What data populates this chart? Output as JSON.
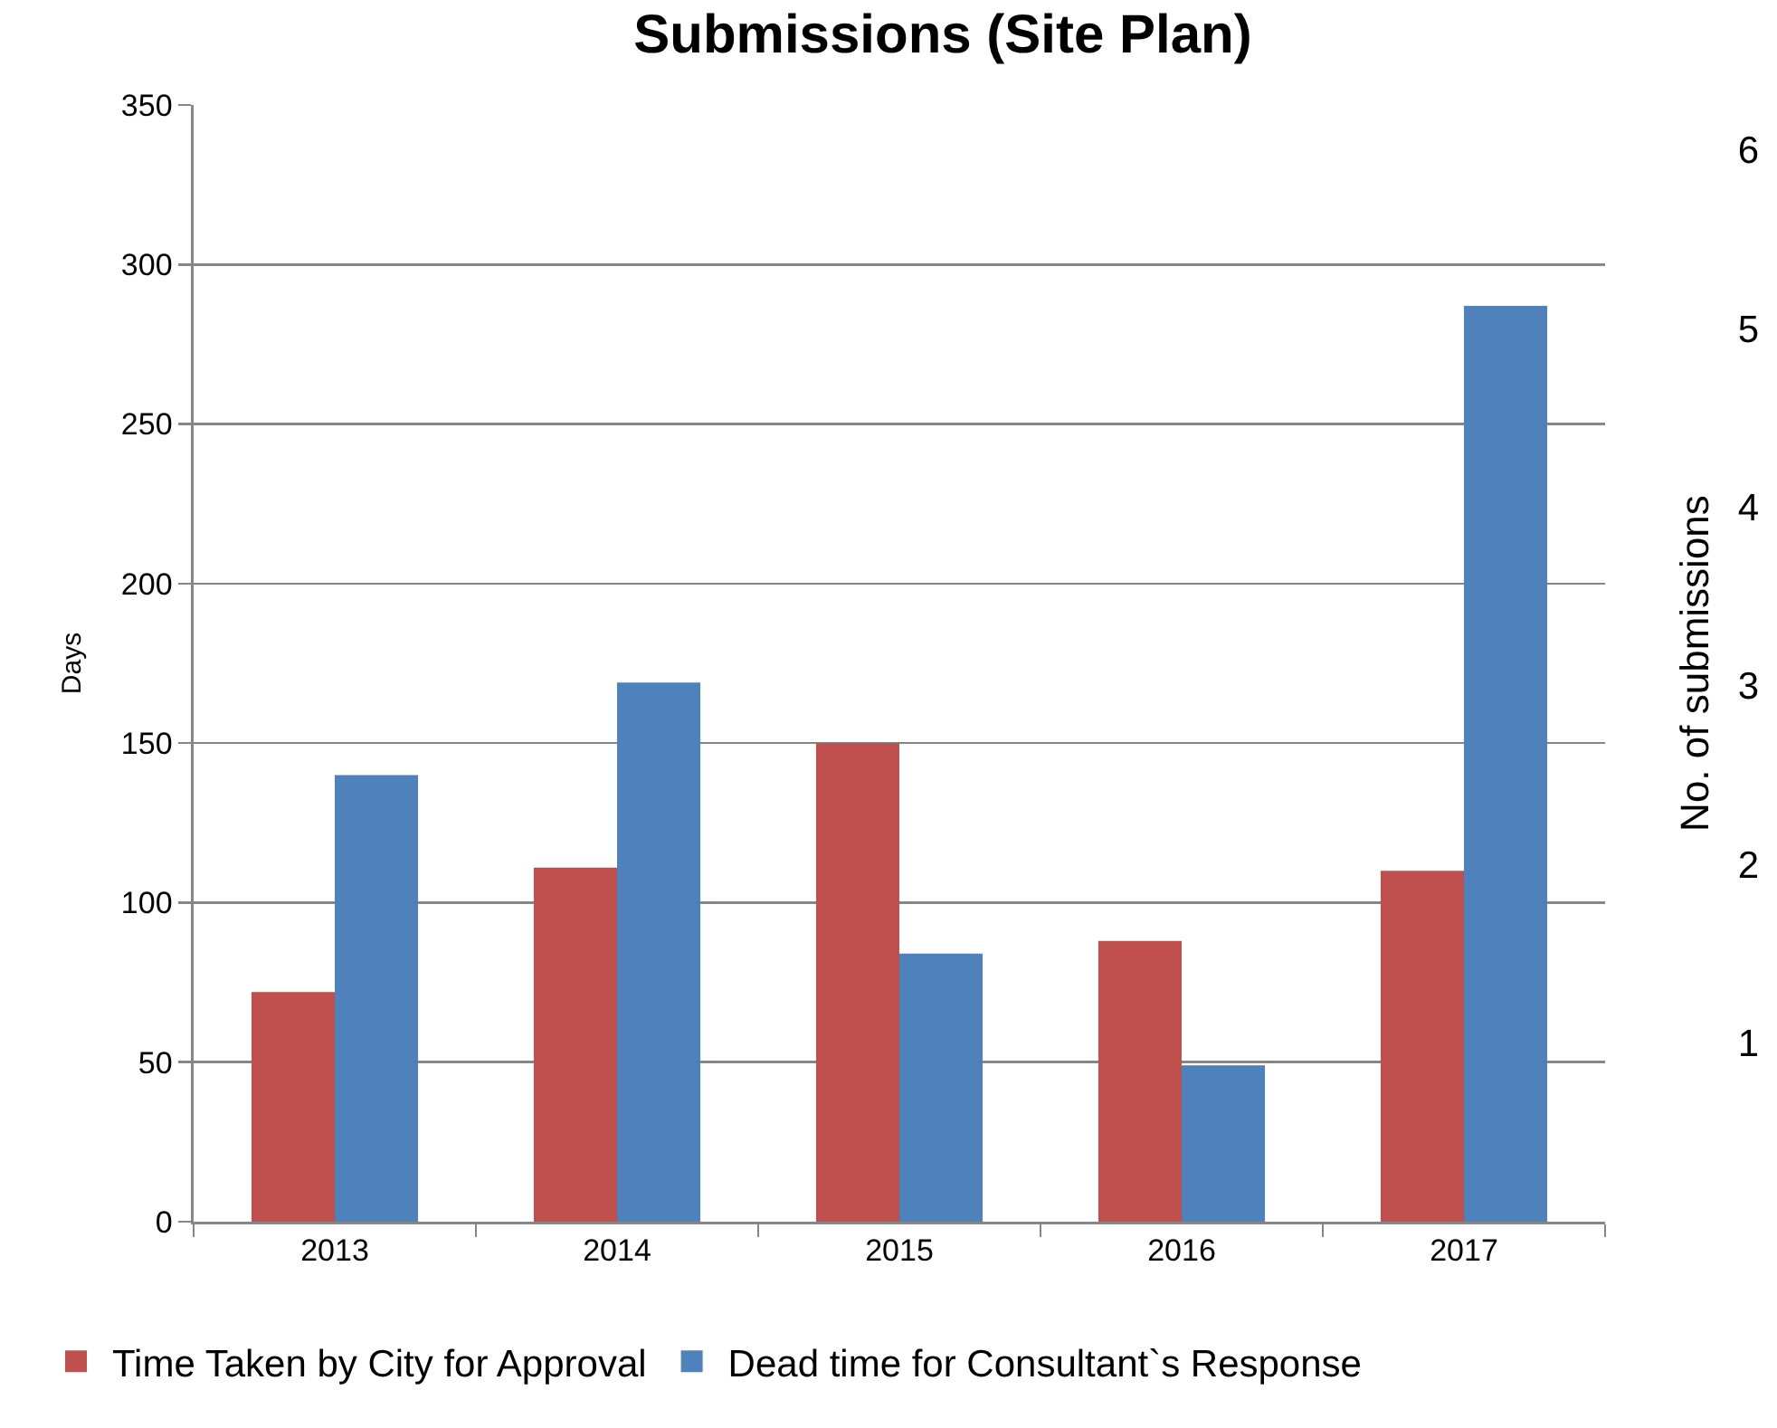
{
  "chart_data": {
    "type": "bar",
    "title": "Submissions (Site Plan)",
    "ylabel": "Days",
    "y2label": "No. of submissions",
    "categories": [
      "2013",
      "2014",
      "2015",
      "2016",
      "2017"
    ],
    "series": [
      {
        "name": "Time Taken by City for Approval",
        "color": "#c0504d",
        "values": [
          72,
          111,
          150,
          88,
          110
        ]
      },
      {
        "name": "Dead time for Consultant`s Response",
        "color": "#4f81bd",
        "values": [
          140,
          169,
          84,
          49,
          287
        ]
      }
    ],
    "ylim": [
      0,
      350
    ],
    "yticks": [
      0,
      50,
      100,
      150,
      200,
      250,
      300,
      350
    ],
    "y2lim": [
      0,
      6.25
    ],
    "y2ticks": [
      1,
      2,
      3,
      4,
      5,
      6
    ],
    "grid": "y",
    "legend": "bottom"
  }
}
